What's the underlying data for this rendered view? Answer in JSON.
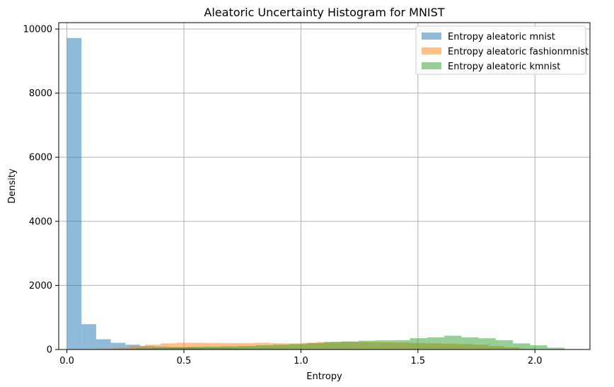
{
  "chart_data": {
    "type": "histogram",
    "title": "Aleatoric Uncertainty Histogram for MNIST",
    "xlabel": "Entropy",
    "ylabel": "Density",
    "xlim": [
      -0.035,
      2.235
    ],
    "ylim": [
      0,
      10200
    ],
    "xticks": [
      0.0,
      0.5,
      1.0,
      1.5,
      2.0
    ],
    "xtick_labels": [
      "0.0",
      "0.5",
      "1.0",
      "1.5",
      "2.0"
    ],
    "yticks": [
      0,
      2000,
      4000,
      6000,
      8000,
      10000
    ],
    "ytick_labels": [
      "0",
      "2000",
      "4000",
      "6000",
      "8000",
      "10000"
    ],
    "grid": true,
    "legend_position": "top-right",
    "series": [
      {
        "name": "Entropy aleatoric mnist",
        "color": "#1f77b4",
        "opacity": 0.5,
        "bin_start": 0.0,
        "bin_width": 0.0625,
        "values": [
          9720,
          790,
          320,
          210,
          150,
          110,
          90,
          70,
          60,
          50,
          45,
          40,
          35,
          30,
          25,
          22,
          18,
          14,
          10,
          7,
          5,
          3,
          2,
          1,
          1,
          0,
          0,
          0,
          0,
          0
        ]
      },
      {
        "name": "Entropy aleatoric fashionmnist",
        "color": "#ff7f0e",
        "opacity": 0.5,
        "bin_start": 0.0,
        "bin_width": 0.0667,
        "values": [
          0,
          10,
          30,
          60,
          110,
          150,
          190,
          210,
          210,
          205,
          200,
          200,
          210,
          195,
          190,
          210,
          235,
          245,
          240,
          230,
          220,
          215,
          205,
          190,
          180,
          170,
          150,
          110,
          70,
          25
        ]
      },
      {
        "name": "Entropy aleatoric kmnist",
        "color": "#2ca02c",
        "opacity": 0.5,
        "bin_start": 0.0,
        "bin_width": 0.0733,
        "values": [
          0,
          5,
          15,
          25,
          40,
          55,
          70,
          80,
          90,
          100,
          110,
          130,
          150,
          170,
          200,
          230,
          250,
          275,
          285,
          290,
          355,
          380,
          430,
          380,
          350,
          290,
          190,
          130,
          55,
          15
        ]
      }
    ]
  }
}
